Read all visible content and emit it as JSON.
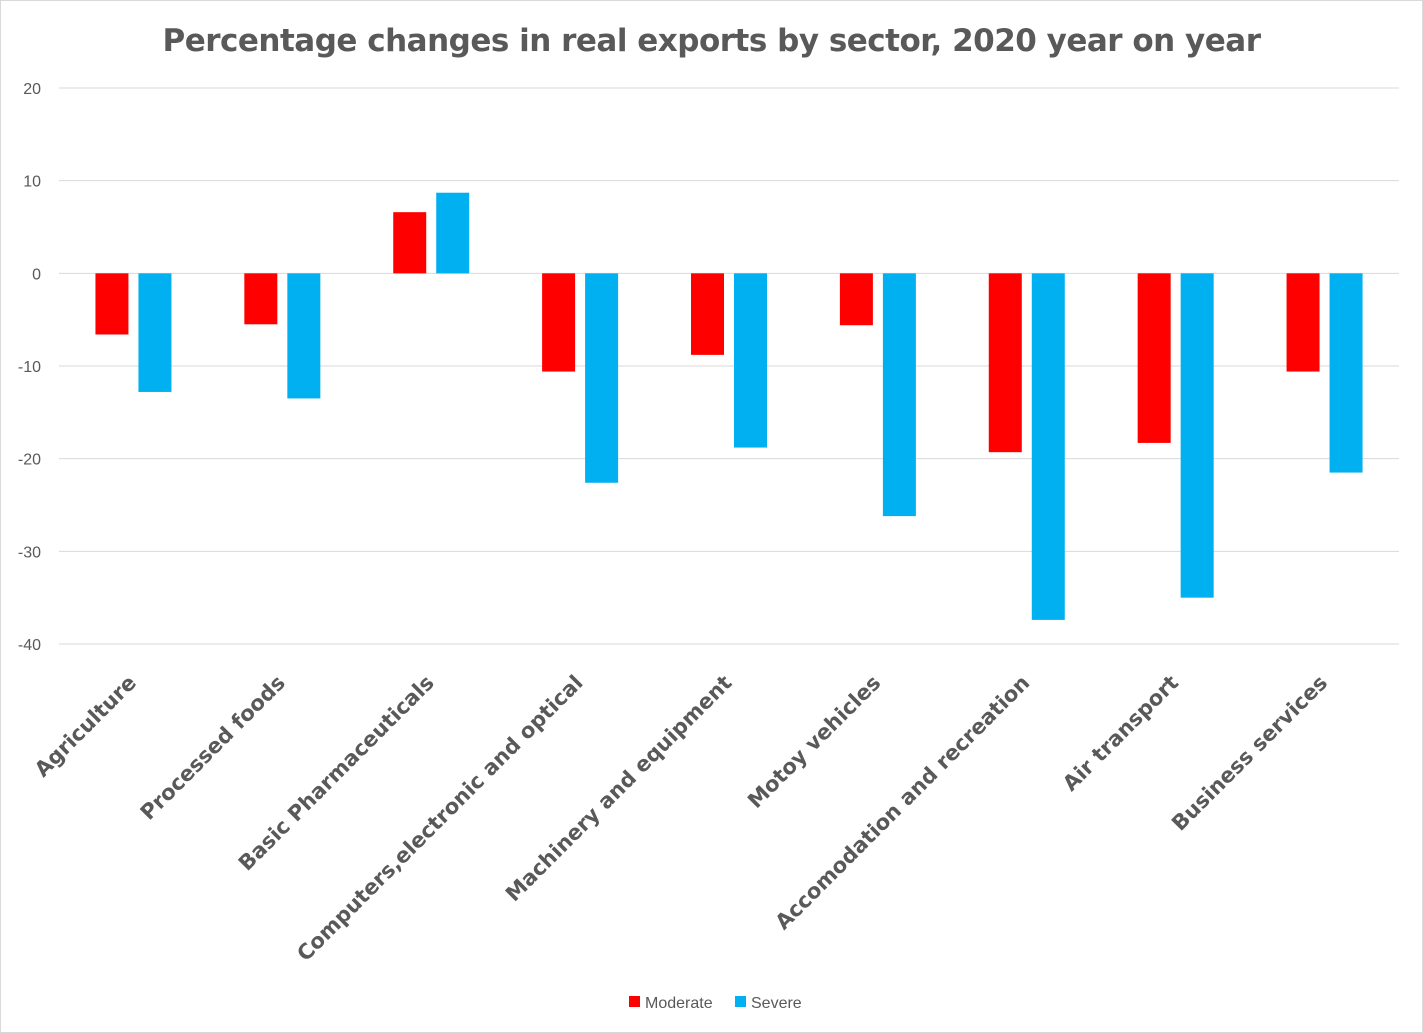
{
  "chart_data": {
    "type": "bar",
    "title": "Percentage changes in real exports by sector, 2020 year on year",
    "xlabel": "",
    "ylabel": "",
    "ylim": [
      -40,
      20
    ],
    "yticks": [
      20,
      10,
      0,
      -10,
      -20,
      -30,
      -40
    ],
    "grid": true,
    "legend_position": "bottom",
    "categories": [
      "Agriculture",
      "Processed foods",
      "Basic Pharmaceuticals",
      "Computers,electronic and optical",
      "Machinery and equipment",
      "Motoy vehicles",
      "Accomodation and recreation",
      "Air transport",
      "Business services"
    ],
    "series": [
      {
        "name": "Moderate",
        "color": "#ff0000",
        "values": [
          -6.6,
          -5.5,
          6.6,
          -10.6,
          -8.8,
          -5.6,
          -19.3,
          -18.3,
          -10.6
        ]
      },
      {
        "name": "Severe",
        "color": "#00b0f0",
        "values": [
          -12.8,
          -13.5,
          8.7,
          -22.6,
          -18.8,
          -26.2,
          -37.4,
          -35.0,
          -21.5
        ]
      }
    ]
  }
}
